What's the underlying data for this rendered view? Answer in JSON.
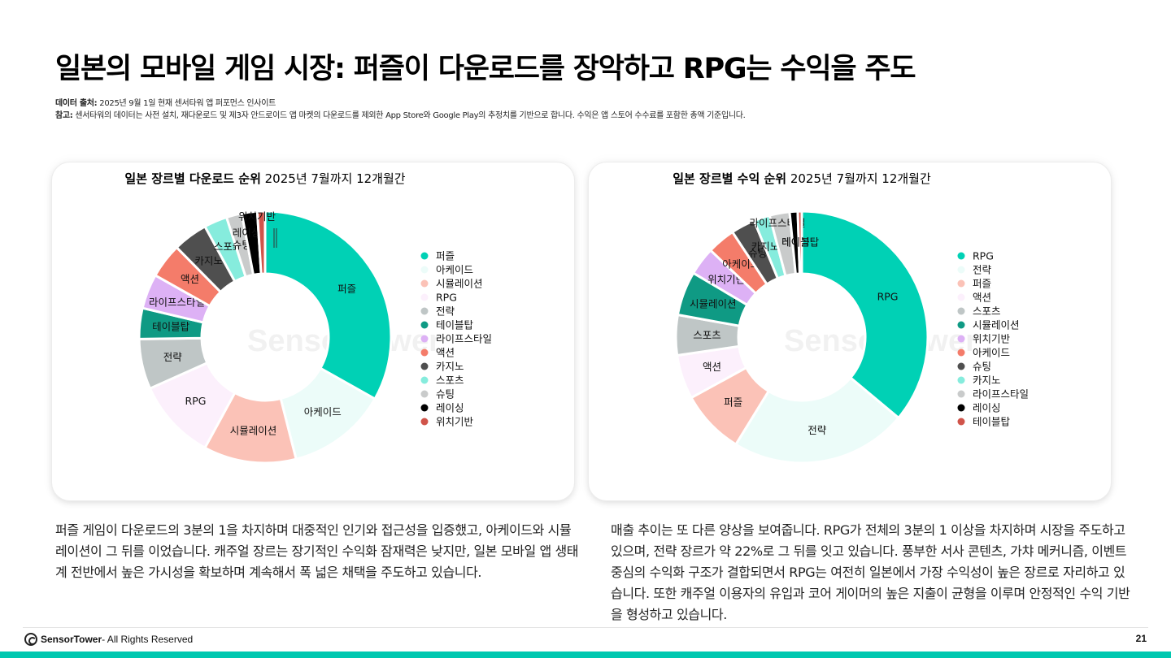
{
  "page": {
    "title": "일본의 모바일 게임 시장: 퍼즐이 다운로드를 장악하고 RPG는 수익을 주도",
    "source_label": "데이터 출처:",
    "source_text": " 2025년 9월 1일 현재 센서타워 앱 퍼포먼스 인사이트",
    "note_label": "참고:",
    "note_text": " 센서타워의 데이터는 사전 설치, 재다운로드 및 제3자 안드로이드 앱 마켓의 다운로드를 제외한 App Store와 Google Play의 추정치를 기반으로 합니다. 수익은 앱 스토어 수수료를 포함한 총액 기준입니다.",
    "caption_left": "퍼즐 게임이 다운로드의 3분의 1을 차지하며 대중적인 인기와 접근성을 입증했고, 아케이드와 시뮬레이션이 그 뒤를 이었습니다. 캐주얼 장르는 장기적인 수익화 잠재력은 낮지만, 일본 모바일 앱 생태계 전반에서 높은 가시성을 확보하며 계속해서 폭 넓은 채택을 주도하고 있습니다.",
    "caption_right": "매출 추이는 또 다른 양상을 보여줍니다. RPG가 전체의 3분의 1 이상을 차지하며 시장을 주도하고 있으며, 전략 장르가 약 22%로 그 뒤를 잇고 있습니다. 풍부한 서사 콘텐츠, 가챠 메커니즘, 이벤트 중심의 수익화 구조가 결합되면서 RPG는 여전히 일본에서 가장 수익성이 높은 장르로 자리하고 있습니다. 또한 캐주얼 이용자의 유입과 코어 게이머의 높은 지출이 균형을 이루며 안정적인 수익 기반을 형성하고 있습니다.",
    "footer_brand": "SensorTower",
    "footer_rights": " - All Rights Reserved",
    "page_number": "21",
    "watermark": "SensorTower"
  },
  "chart_data": [
    {
      "type": "pie",
      "donut": true,
      "title_bold": "일본 장르별 다운로드 순위",
      "title_rest": " 2025년 7월까지 12개월간",
      "legend_position": "right",
      "categories": [
        "퍼즐",
        "아케이드",
        "시뮬레이션",
        "RPG",
        "전략",
        "테이블탑",
        "라이프스타일",
        "액션",
        "카지노",
        "스포츠",
        "슈팅",
        "레이싱",
        "위치기반"
      ],
      "values": [
        33.5,
        13,
        12,
        10.5,
        6.5,
        4,
        4.5,
        4.5,
        4.5,
        3,
        2,
        2,
        1
      ],
      "colors": [
        "#00d1b5",
        "#ecfcf9",
        "#fbc2b7",
        "#fcf0fc",
        "#bfc6c6",
        "#0f9a84",
        "#ddb1f5",
        "#f47c6a",
        "#4f4f4f",
        "#86ecdd",
        "#c9cbcb",
        "#000000",
        "#d0544a"
      ]
    },
    {
      "type": "pie",
      "donut": true,
      "title_bold": "일본 장르별 수익 순위",
      "title_rest": " 2025년 7월까지 12개월간",
      "legend_position": "right",
      "categories": [
        "RPG",
        "전략",
        "퍼즐",
        "액션",
        "스포츠",
        "시뮬레이션",
        "위치기반",
        "아케이드",
        "슈팅",
        "카지노",
        "라이프스타일",
        "레이싱",
        "테이블탑"
      ],
      "values": [
        35,
        22,
        8,
        5.5,
        5,
        5.5,
        3.5,
        3.5,
        3,
        2,
        2.5,
        1,
        0.5
      ],
      "colors": [
        "#00d1b5",
        "#ecfcf9",
        "#fbc2b7",
        "#fcf0fc",
        "#bfc6c6",
        "#0f9a84",
        "#ddb1f5",
        "#f47c6a",
        "#4f4f4f",
        "#86ecdd",
        "#c9cbcb",
        "#000000",
        "#d0544a"
      ]
    }
  ]
}
